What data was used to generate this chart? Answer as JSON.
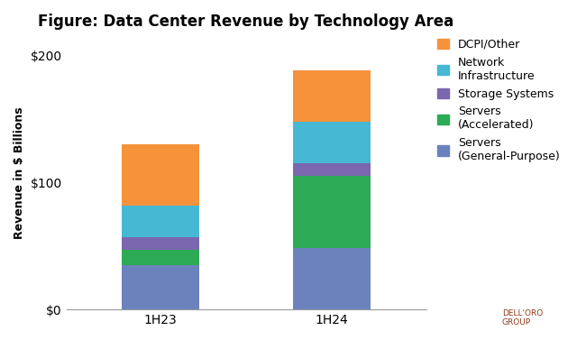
{
  "title": "Figure: Data Center Revenue by Technology Area",
  "ylabel": "Revenue in $ Billions",
  "categories": [
    "1H23",
    "1H24"
  ],
  "segments": [
    {
      "label": "Servers\n(General-Purpose)",
      "values": [
        35,
        48
      ],
      "color": "#6b82bc"
    },
    {
      "label": "Servers\n(Accelerated)",
      "values": [
        12,
        57
      ],
      "color": "#2daa55"
    },
    {
      "label": "Storage Systems",
      "values": [
        10,
        10
      ],
      "color": "#7b67b0"
    },
    {
      "label": "Network\nInfrastructure",
      "values": [
        25,
        33
      ],
      "color": "#47b8d4"
    },
    {
      "label": "DCPI/Other",
      "values": [
        48,
        40
      ],
      "color": "#f5923a"
    }
  ],
  "ylim": [
    0,
    215
  ],
  "yticks": [
    0,
    100,
    200
  ],
  "ytick_labels": [
    "$0",
    "$100",
    "$200"
  ],
  "bar_width": 0.45,
  "background_color": "#ffffff",
  "title_fontsize": 12,
  "axis_fontsize": 9,
  "legend_fontsize": 9,
  "tick_fontsize": 10
}
